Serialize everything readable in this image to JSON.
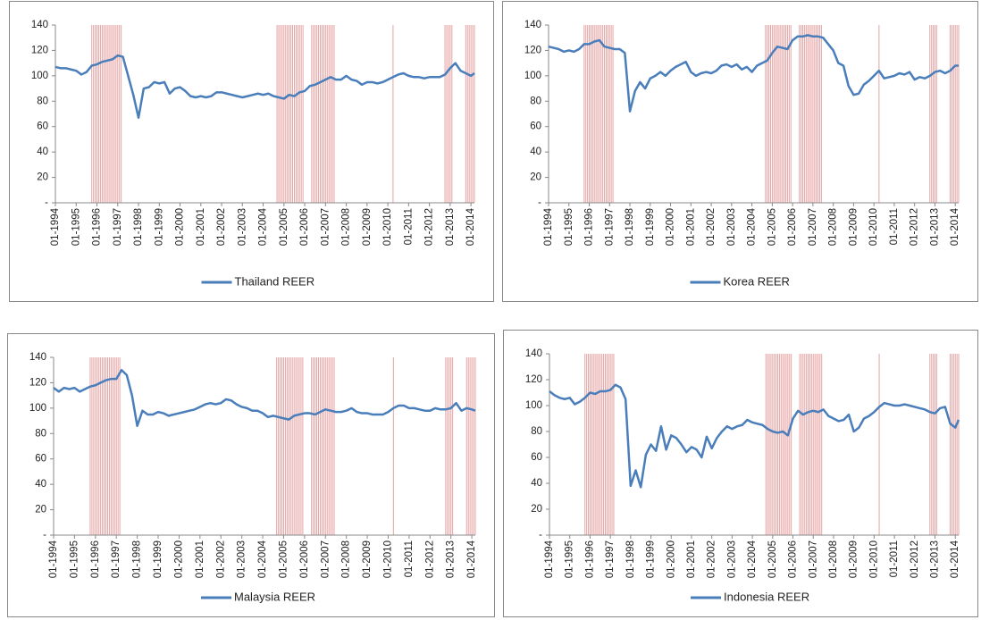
{
  "chart_data": [
    {
      "type": "line",
      "x": [
        "01-1994",
        "04-1994",
        "07-1994",
        "10-1994",
        "01-1995",
        "04-1995",
        "07-1995",
        "10-1995",
        "01-1996",
        "04-1996",
        "07-1996",
        "10-1996",
        "01-1997",
        "04-1997",
        "07-1997",
        "10-1997",
        "01-1998",
        "04-1998",
        "07-1998",
        "10-1998",
        "01-1999",
        "04-1999",
        "07-1999",
        "10-1999",
        "01-2000",
        "04-2000",
        "07-2000",
        "10-2000",
        "01-2001",
        "04-2001",
        "07-2001",
        "10-2001",
        "01-2002",
        "04-2002",
        "07-2002",
        "10-2002",
        "01-2003",
        "04-2003",
        "07-2003",
        "10-2003",
        "01-2004",
        "04-2004",
        "07-2004",
        "10-2004",
        "01-2005",
        "04-2005",
        "07-2005",
        "10-2005",
        "01-2006",
        "04-2006",
        "07-2006",
        "10-2006",
        "01-2007",
        "04-2007",
        "07-2007",
        "10-2007",
        "01-2008",
        "04-2008",
        "07-2008",
        "10-2008",
        "01-2009",
        "04-2009",
        "07-2009",
        "10-2009",
        "01-2010",
        "04-2010",
        "07-2010",
        "10-2010",
        "01-2011",
        "04-2011",
        "07-2011",
        "10-2011",
        "01-2012",
        "04-2012",
        "07-2012",
        "10-2012",
        "01-2013",
        "04-2013",
        "07-2013",
        "10-2013",
        "01-2014",
        "03-2014"
      ],
      "series": [
        {
          "name": "Thailand REER",
          "color": "#4a7ebb",
          "values": [
            107,
            106,
            106,
            105,
            104,
            101,
            103,
            108,
            109,
            111,
            112,
            113,
            116,
            115,
            100,
            85,
            67,
            90,
            91,
            95,
            94,
            95,
            86,
            90,
            91,
            88,
            84,
            83,
            84,
            83,
            84,
            87,
            87,
            86,
            85,
            84,
            83,
            84,
            85,
            86,
            85,
            86,
            84,
            83,
            82,
            85,
            84,
            87,
            88,
            92,
            93,
            95,
            97,
            99,
            97,
            97,
            100,
            97,
            96,
            93,
            95,
            95,
            94,
            95,
            97,
            99,
            101,
            102,
            100,
            99,
            99,
            98,
            99,
            99,
            99,
            101,
            106,
            110,
            104,
            102,
            100,
            102
          ]
        }
      ],
      "xlim": [
        "01-1994",
        "03-2014"
      ],
      "xticks": [
        "01-1994",
        "01-1995",
        "01-1996",
        "01-1997",
        "01-1998",
        "01-1999",
        "01-2000",
        "01-2001",
        "01-2002",
        "01-2003",
        "01-2004",
        "01-2005",
        "01-2006",
        "01-2007",
        "01-2008",
        "01-2009",
        "01-2010",
        "01-2011",
        "01-2012",
        "01-2013",
        "01-2014"
      ],
      "ylim": [
        0,
        140
      ],
      "yticks": [
        {
          "value": 0,
          "label": "-"
        },
        20,
        40,
        60,
        80,
        100,
        120,
        140
      ],
      "highlight_ranges": [
        [
          "10-1995",
          "03-1997"
        ],
        [
          "09-2004",
          "12-2005"
        ],
        [
          "05-2006",
          "06-2007"
        ],
        [
          "04-2010",
          "04-2010"
        ],
        [
          "10-2012",
          "02-2013"
        ],
        [
          "10-2013",
          "03-2014"
        ]
      ],
      "highlight_color": "#e6a3a3",
      "legend": "bottom"
    },
    {
      "type": "line",
      "x": [
        "01-1994",
        "04-1994",
        "07-1994",
        "10-1994",
        "01-1995",
        "04-1995",
        "07-1995",
        "10-1995",
        "01-1996",
        "04-1996",
        "07-1996",
        "10-1996",
        "01-1997",
        "04-1997",
        "07-1997",
        "10-1997",
        "01-1998",
        "04-1998",
        "07-1998",
        "10-1998",
        "01-1999",
        "04-1999",
        "07-1999",
        "10-1999",
        "01-2000",
        "04-2000",
        "07-2000",
        "10-2000",
        "01-2001",
        "04-2001",
        "07-2001",
        "10-2001",
        "01-2002",
        "04-2002",
        "07-2002",
        "10-2002",
        "01-2003",
        "04-2003",
        "07-2003",
        "10-2003",
        "01-2004",
        "04-2004",
        "07-2004",
        "10-2004",
        "01-2005",
        "04-2005",
        "07-2005",
        "10-2005",
        "01-2006",
        "04-2006",
        "07-2006",
        "10-2006",
        "01-2007",
        "04-2007",
        "07-2007",
        "10-2007",
        "01-2008",
        "04-2008",
        "07-2008",
        "10-2008",
        "01-2009",
        "04-2009",
        "07-2009",
        "10-2009",
        "01-2010",
        "04-2010",
        "07-2010",
        "10-2010",
        "01-2011",
        "04-2011",
        "07-2011",
        "10-2011",
        "01-2012",
        "04-2012",
        "07-2012",
        "10-2012",
        "01-2013",
        "04-2013",
        "07-2013",
        "10-2013",
        "01-2014",
        "03-2014"
      ],
      "series": [
        {
          "name": "Korea REER",
          "color": "#4a7ebb",
          "values": [
            123,
            122,
            121,
            119,
            120,
            119,
            121,
            125,
            125,
            127,
            128,
            123,
            122,
            121,
            121,
            118,
            72,
            88,
            95,
            90,
            98,
            100,
            103,
            100,
            104,
            107,
            109,
            111,
            103,
            100,
            102,
            103,
            102,
            104,
            108,
            109,
            107,
            109,
            105,
            107,
            103,
            108,
            110,
            112,
            118,
            123,
            122,
            121,
            128,
            131,
            131,
            132,
            131,
            131,
            130,
            125,
            120,
            110,
            108,
            92,
            85,
            86,
            93,
            96,
            100,
            104,
            98,
            99,
            100,
            102,
            101,
            103,
            97,
            99,
            98,
            100,
            103,
            104,
            102,
            104,
            108,
            108
          ]
        }
      ],
      "xlim": [
        "01-1994",
        "03-2014"
      ],
      "xticks": [
        "01-1994",
        "01-1995",
        "01-1996",
        "01-1997",
        "01-1998",
        "01-1999",
        "01-2000",
        "01-2001",
        "01-2002",
        "01-2003",
        "01-2004",
        "01-2005",
        "01-2006",
        "01-2007",
        "01-2008",
        "01-2009",
        "01-2010",
        "01-2011",
        "01-2012",
        "01-2013",
        "01-2014"
      ],
      "ylim": [
        0,
        140
      ],
      "yticks": [
        {
          "value": 0,
          "label": "-"
        },
        20,
        40,
        60,
        80,
        100,
        120,
        140
      ],
      "highlight_ranges": [
        [
          "10-1995",
          "03-1997"
        ],
        [
          "09-2004",
          "12-2005"
        ],
        [
          "05-2006",
          "06-2007"
        ],
        [
          "04-2010",
          "04-2010"
        ],
        [
          "10-2012",
          "02-2013"
        ],
        [
          "10-2013",
          "03-2014"
        ]
      ],
      "highlight_color": "#e6a3a3",
      "legend": "bottom"
    },
    {
      "type": "line",
      "x": [
        "01-1994",
        "04-1994",
        "07-1994",
        "10-1994",
        "01-1995",
        "04-1995",
        "07-1995",
        "10-1995",
        "01-1996",
        "04-1996",
        "07-1996",
        "10-1996",
        "01-1997",
        "04-1997",
        "07-1997",
        "10-1997",
        "01-1998",
        "04-1998",
        "07-1998",
        "10-1998",
        "01-1999",
        "04-1999",
        "07-1999",
        "10-1999",
        "01-2000",
        "04-2000",
        "07-2000",
        "10-2000",
        "01-2001",
        "04-2001",
        "07-2001",
        "10-2001",
        "01-2002",
        "04-2002",
        "07-2002",
        "10-2002",
        "01-2003",
        "04-2003",
        "07-2003",
        "10-2003",
        "01-2004",
        "04-2004",
        "07-2004",
        "10-2004",
        "01-2005",
        "04-2005",
        "07-2005",
        "10-2005",
        "01-2006",
        "04-2006",
        "07-2006",
        "10-2006",
        "01-2007",
        "04-2007",
        "07-2007",
        "10-2007",
        "01-2008",
        "04-2008",
        "07-2008",
        "10-2008",
        "01-2009",
        "04-2009",
        "07-2009",
        "10-2009",
        "01-2010",
        "04-2010",
        "07-2010",
        "10-2010",
        "01-2011",
        "04-2011",
        "07-2011",
        "10-2011",
        "01-2012",
        "04-2012",
        "07-2012",
        "10-2012",
        "01-2013",
        "04-2013",
        "07-2013",
        "10-2013",
        "01-2014",
        "03-2014"
      ],
      "series": [
        {
          "name": "Malaysia REER",
          "color": "#4a7ebb",
          "values": [
            116,
            113,
            116,
            115,
            116,
            113,
            115,
            117,
            118,
            120,
            122,
            123,
            123,
            130,
            126,
            110,
            86,
            98,
            95,
            95,
            97,
            96,
            94,
            95,
            96,
            97,
            98,
            99,
            101,
            103,
            104,
            103,
            104,
            107,
            106,
            103,
            101,
            100,
            98,
            98,
            96,
            93,
            94,
            93,
            92,
            91,
            94,
            95,
            96,
            96,
            95,
            97,
            99,
            98,
            97,
            97,
            98,
            100,
            97,
            96,
            96,
            95,
            95,
            95,
            97,
            100,
            102,
            102,
            100,
            100,
            99,
            98,
            98,
            100,
            99,
            99,
            100,
            104,
            98,
            100,
            99,
            98
          ]
        }
      ],
      "xlim": [
        "01-1994",
        "03-2014"
      ],
      "xticks": [
        "01-1994",
        "01-1995",
        "01-1996",
        "01-1997",
        "01-1998",
        "01-1999",
        "01-2000",
        "01-2001",
        "01-2002",
        "01-2003",
        "01-2004",
        "01-2005",
        "01-2006",
        "01-2007",
        "01-2008",
        "01-2009",
        "01-2010",
        "01-2011",
        "01-2012",
        "01-2013",
        "01-2014"
      ],
      "ylim": [
        0,
        140
      ],
      "yticks": [
        {
          "value": 0,
          "label": "-"
        },
        20,
        40,
        60,
        80,
        100,
        120,
        140
      ],
      "highlight_ranges": [
        [
          "10-1995",
          "03-1997"
        ],
        [
          "09-2004",
          "12-2005"
        ],
        [
          "05-2006",
          "06-2007"
        ],
        [
          "04-2010",
          "04-2010"
        ],
        [
          "10-2012",
          "02-2013"
        ],
        [
          "10-2013",
          "03-2014"
        ]
      ],
      "highlight_color": "#e6a3a3",
      "legend": "bottom"
    },
    {
      "type": "line",
      "x": [
        "01-1994",
        "04-1994",
        "07-1994",
        "10-1994",
        "01-1995",
        "04-1995",
        "07-1995",
        "10-1995",
        "01-1996",
        "04-1996",
        "07-1996",
        "10-1996",
        "01-1997",
        "04-1997",
        "07-1997",
        "10-1997",
        "01-1998",
        "04-1998",
        "07-1998",
        "10-1998",
        "01-1999",
        "04-1999",
        "07-1999",
        "10-1999",
        "01-2000",
        "04-2000",
        "07-2000",
        "10-2000",
        "01-2001",
        "04-2001",
        "07-2001",
        "10-2001",
        "01-2002",
        "04-2002",
        "07-2002",
        "10-2002",
        "01-2003",
        "04-2003",
        "07-2003",
        "10-2003",
        "01-2004",
        "04-2004",
        "07-2004",
        "10-2004",
        "01-2005",
        "04-2005",
        "07-2005",
        "10-2005",
        "01-2006",
        "04-2006",
        "07-2006",
        "10-2006",
        "01-2007",
        "04-2007",
        "07-2007",
        "10-2007",
        "01-2008",
        "04-2008",
        "07-2008",
        "10-2008",
        "01-2009",
        "04-2009",
        "07-2009",
        "10-2009",
        "01-2010",
        "04-2010",
        "07-2010",
        "10-2010",
        "01-2011",
        "04-2011",
        "07-2011",
        "10-2011",
        "01-2012",
        "04-2012",
        "07-2012",
        "10-2012",
        "01-2013",
        "04-2013",
        "07-2013",
        "10-2013",
        "01-2014",
        "03-2014"
      ],
      "series": [
        {
          "name": "Indonesia REER",
          "color": "#4a7ebb",
          "values": [
            111,
            108,
            106,
            105,
            106,
            101,
            103,
            106,
            110,
            109,
            111,
            111,
            112,
            116,
            114,
            105,
            38,
            50,
            37,
            62,
            70,
            65,
            84,
            66,
            77,
            75,
            70,
            64,
            68,
            66,
            60,
            76,
            67,
            75,
            80,
            84,
            82,
            84,
            85,
            89,
            87,
            86,
            85,
            82,
            80,
            79,
            80,
            77,
            90,
            96,
            93,
            95,
            96,
            95,
            97,
            92,
            90,
            88,
            89,
            93,
            80,
            83,
            90,
            92,
            95,
            99,
            102,
            101,
            100,
            100,
            101,
            100,
            99,
            98,
            97,
            95,
            94,
            98,
            99,
            86,
            83,
            89
          ]
        }
      ],
      "xlim": [
        "01-1994",
        "03-2014"
      ],
      "xticks": [
        "01-1994",
        "01-1995",
        "01-1996",
        "01-1997",
        "01-1998",
        "01-1999",
        "01-2000",
        "01-2001",
        "01-2002",
        "01-2003",
        "01-2004",
        "01-2005",
        "01-2006",
        "01-2007",
        "01-2008",
        "01-2009",
        "01-2010",
        "01-2011",
        "01-2012",
        "01-2013",
        "01-2014"
      ],
      "ylim": [
        0,
        140
      ],
      "yticks": [
        {
          "value": 0,
          "label": "-"
        },
        20,
        40,
        60,
        80,
        100,
        120,
        140
      ],
      "highlight_ranges": [
        [
          "10-1995",
          "03-1997"
        ],
        [
          "09-2004",
          "12-2005"
        ],
        [
          "05-2006",
          "06-2007"
        ],
        [
          "04-2010",
          "04-2010"
        ],
        [
          "10-2012",
          "02-2013"
        ],
        [
          "10-2013",
          "03-2014"
        ]
      ],
      "highlight_color": "#e6a3a3",
      "legend": "bottom"
    }
  ]
}
